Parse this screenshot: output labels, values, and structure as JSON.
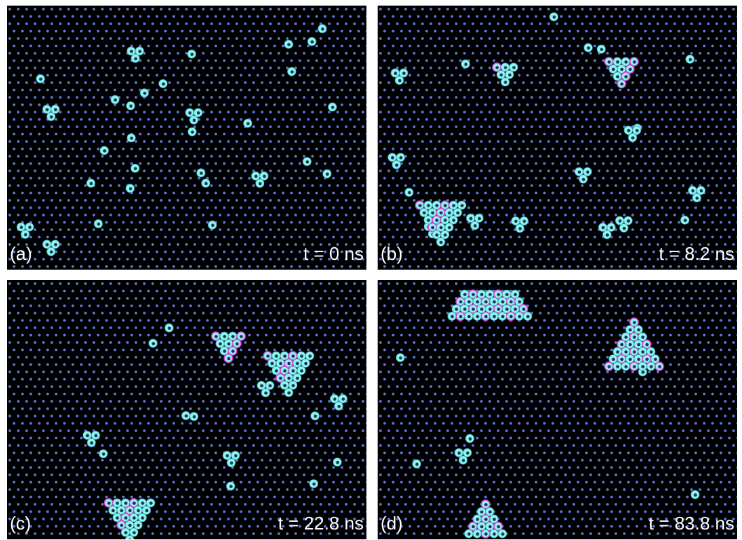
{
  "panels": [
    {
      "label": "(a)",
      "time": "t = 0 ns"
    },
    {
      "label": "(b)",
      "time": "t = 8.2 ns"
    },
    {
      "label": "(c)",
      "time": "t = 22.8 ns"
    },
    {
      "label": "(d)",
      "time": "t = 83.8 ns"
    }
  ]
}
